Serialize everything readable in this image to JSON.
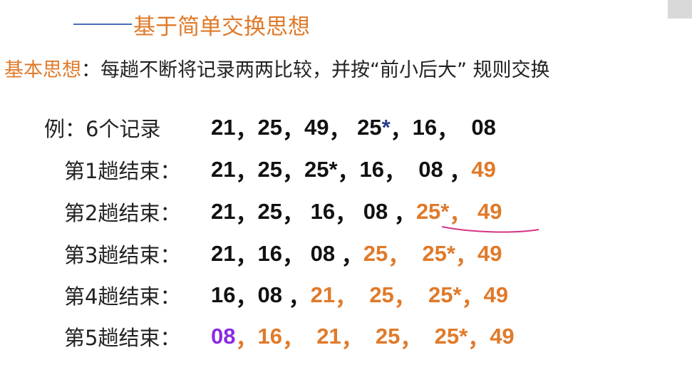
{
  "subtitle": "基于简单交换思想",
  "idea": {
    "label": "基本思想",
    "text": "：每趟不断将记录两两比较，并按“前小后大” 规则交换"
  },
  "example": {
    "label": "例：6个记录",
    "sequence": [
      {
        "t": "21",
        "c": "blk"
      },
      {
        "t": "，",
        "c": "sep"
      },
      {
        "t": "25",
        "c": "blk"
      },
      {
        "t": "，",
        "c": "sep"
      },
      {
        "t": "49",
        "c": "blk"
      },
      {
        "t": "， ",
        "c": "sep"
      },
      {
        "t": "25",
        "c": "blk"
      },
      {
        "t": "*",
        "c": "blu"
      },
      {
        "t": "，",
        "c": "sep"
      },
      {
        "t": "16",
        "c": "blk"
      },
      {
        "t": "，  ",
        "c": "sep"
      },
      {
        "t": "08",
        "c": "blk"
      }
    ]
  },
  "passes": [
    {
      "label": "第1趟结束：",
      "sequence": [
        {
          "t": "21",
          "c": "blk"
        },
        {
          "t": "，",
          "c": "sep"
        },
        {
          "t": "25",
          "c": "blk"
        },
        {
          "t": "，",
          "c": "sep"
        },
        {
          "t": "25*",
          "c": "blk"
        },
        {
          "t": "，",
          "c": "sep"
        },
        {
          "t": "16",
          "c": "blk"
        },
        {
          "t": "，  ",
          "c": "sep"
        },
        {
          "t": "08",
          "c": "blk"
        },
        {
          "t": " ，",
          "c": "sep"
        },
        {
          "t": "49",
          "c": "org"
        }
      ]
    },
    {
      "label": "第2趟结束：",
      "sequence": [
        {
          "t": "21",
          "c": "blk"
        },
        {
          "t": "，",
          "c": "sep"
        },
        {
          "t": "25",
          "c": "blk"
        },
        {
          "t": "， ",
          "c": "sep"
        },
        {
          "t": "16",
          "c": "blk"
        },
        {
          "t": "， ",
          "c": "sep"
        },
        {
          "t": "08",
          "c": "blk"
        },
        {
          "t": " ，",
          "c": "sep"
        },
        {
          "t": "25*",
          "c": "org"
        },
        {
          "t": "， ",
          "c": "org"
        },
        {
          "t": "49",
          "c": "org"
        }
      ]
    },
    {
      "label": "第3趟结束：",
      "sequence": [
        {
          "t": "21",
          "c": "blk"
        },
        {
          "t": "，",
          "c": "sep"
        },
        {
          "t": "16",
          "c": "blk"
        },
        {
          "t": "， ",
          "c": "sep"
        },
        {
          "t": "08",
          "c": "blk"
        },
        {
          "t": " ，",
          "c": "sep"
        },
        {
          "t": "25",
          "c": "org"
        },
        {
          "t": "，  ",
          "c": "org"
        },
        {
          "t": "25*",
          "c": "org"
        },
        {
          "t": "，",
          "c": "org"
        },
        {
          "t": "49",
          "c": "org"
        }
      ]
    },
    {
      "label": "第4趟结束：",
      "sequence": [
        {
          "t": "16",
          "c": "blk"
        },
        {
          "t": "，",
          "c": "sep"
        },
        {
          "t": "08",
          "c": "blk"
        },
        {
          "t": " ，",
          "c": "sep"
        },
        {
          "t": "21",
          "c": "org"
        },
        {
          "t": "，  ",
          "c": "org"
        },
        {
          "t": "25",
          "c": "org"
        },
        {
          "t": "，  ",
          "c": "org"
        },
        {
          "t": "25*",
          "c": "org"
        },
        {
          "t": "，",
          "c": "org"
        },
        {
          "t": "49",
          "c": "org"
        }
      ]
    },
    {
      "label": "第5趟结束：",
      "sequence": [
        {
          "t": "08",
          "c": "pur"
        },
        {
          "t": "，",
          "c": "org"
        },
        {
          "t": "16",
          "c": "org"
        },
        {
          "t": "，  ",
          "c": "org"
        },
        {
          "t": "21",
          "c": "org"
        },
        {
          "t": "，  ",
          "c": "org"
        },
        {
          "t": "25",
          "c": "org"
        },
        {
          "t": "，  ",
          "c": "org"
        },
        {
          "t": "25*",
          "c": "org"
        },
        {
          "t": "，",
          "c": "org"
        },
        {
          "t": "49",
          "c": "org"
        }
      ]
    }
  ],
  "colors": {
    "accent": "#e07a2a",
    "highlight": "#8a2be2",
    "mark": "#2b3f8c",
    "annotation": "#d63384"
  }
}
